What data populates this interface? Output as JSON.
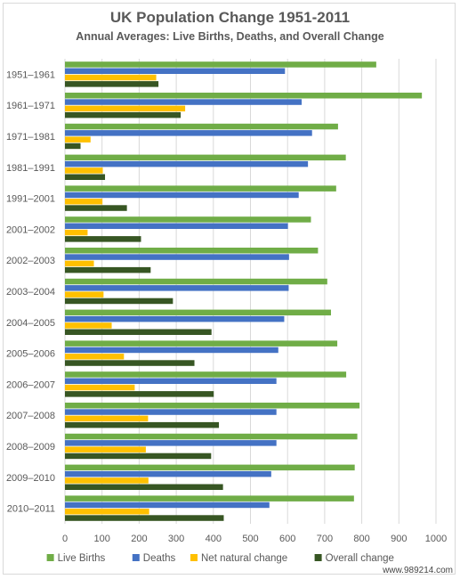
{
  "chart_data": {
    "type": "bar",
    "orientation": "horizontal",
    "title": "UK Population Change 1951-2011",
    "subtitle": "Annual Averages: Live Births, Deaths, and Overall Change",
    "categories": [
      "1951–1961",
      "1961–1971",
      "1971–1981",
      "1981–1991",
      "1991–2001",
      "2001–2002",
      "2002–2003",
      "2003–2004",
      "2004–2005",
      "2005–2006",
      "2006–2007",
      "2007–2008",
      "2008–2009",
      "2009–2010",
      "2010–2011"
    ],
    "series": [
      {
        "name": "Live Births",
        "color": "#70ad47",
        "values": [
          839,
          962,
          736,
          757,
          731,
          663,
          682,
          707,
          717,
          734,
          758,
          794,
          788,
          781,
          779
        ]
      },
      {
        "name": "Deaths",
        "color": "#4472c4",
        "values": [
          593,
          638,
          666,
          655,
          630,
          601,
          604,
          603,
          591,
          575,
          570,
          570,
          570,
          556,
          551
        ]
      },
      {
        "name": "Net natural change",
        "color": "#ffc000",
        "values": [
          246,
          324,
          69,
          102,
          101,
          61,
          78,
          104,
          126,
          159,
          188,
          224,
          218,
          225,
          227
        ]
      },
      {
        "name": "Overall change",
        "color": "#375623",
        "values": [
          252,
          312,
          42,
          108,
          167,
          205,
          231,
          291,
          395,
          349,
          401,
          415,
          394,
          426,
          428
        ]
      }
    ],
    "xlim": [
      0,
      1000
    ],
    "xticks": [
      "0",
      "100",
      "200",
      "300",
      "400",
      "500",
      "600",
      "700",
      "800",
      "900",
      "1000"
    ],
    "grid": true,
    "legend_position": "bottom"
  },
  "watermark": "www.989214.com"
}
